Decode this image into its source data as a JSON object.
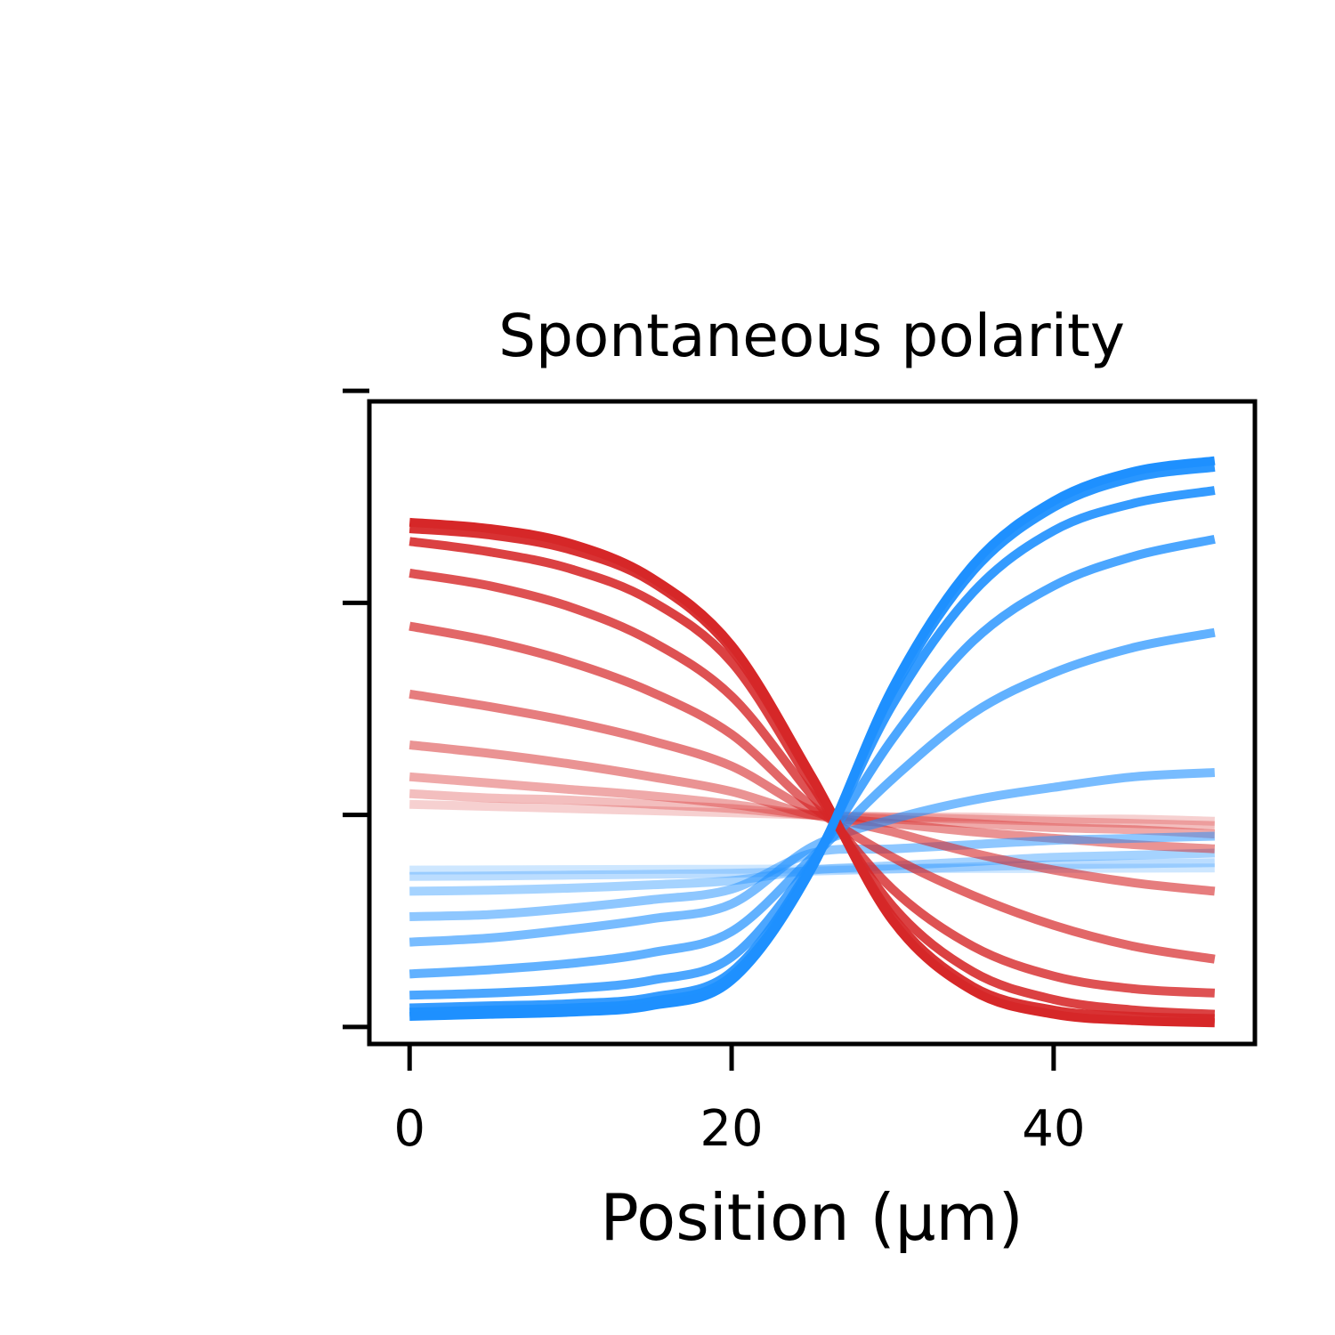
{
  "chart_data": {
    "type": "line",
    "title": "Spontaneous polarity",
    "xlabel": "Position (µm)",
    "ylabel": "",
    "xlim": [
      -2.5,
      52.5
    ],
    "ylim": [
      -0.08,
      2.95
    ],
    "x_ticks": [
      0,
      20,
      40
    ],
    "x_tick_labels": [
      "0",
      "20",
      "40"
    ],
    "y_ticks": [
      0,
      1,
      2,
      3
    ],
    "y_tick_labels": [
      "",
      "",
      "",
      ""
    ],
    "grid": false,
    "legend": "none",
    "colors": {
      "red": "#d62728",
      "blue": "#1e90ff"
    },
    "x": [
      0,
      5,
      10,
      15,
      20,
      25,
      30,
      35,
      40,
      45,
      50
    ],
    "series": [
      {
        "color": "red",
        "opacity": 1.0,
        "values": [
          2.38,
          2.35,
          2.28,
          2.12,
          1.8,
          1.18,
          0.5,
          0.17,
          0.06,
          0.03,
          0.02
        ]
      },
      {
        "color": "red",
        "opacity": 0.95,
        "values": [
          2.35,
          2.32,
          2.25,
          2.1,
          1.78,
          1.17,
          0.52,
          0.19,
          0.08,
          0.05,
          0.04
        ]
      },
      {
        "color": "red",
        "opacity": 0.88,
        "values": [
          2.29,
          2.24,
          2.16,
          2.01,
          1.72,
          1.14,
          0.57,
          0.26,
          0.13,
          0.08,
          0.06
        ]
      },
      {
        "color": "red",
        "opacity": 0.8,
        "values": [
          2.14,
          2.08,
          1.98,
          1.82,
          1.56,
          1.09,
          0.65,
          0.38,
          0.24,
          0.18,
          0.16
        ]
      },
      {
        "color": "red",
        "opacity": 0.7,
        "values": [
          1.89,
          1.82,
          1.72,
          1.58,
          1.38,
          1.04,
          0.8,
          0.62,
          0.48,
          0.38,
          0.32
        ]
      },
      {
        "color": "red",
        "opacity": 0.6,
        "values": [
          1.57,
          1.51,
          1.44,
          1.35,
          1.23,
          1.02,
          0.92,
          0.82,
          0.74,
          0.68,
          0.64
        ]
      },
      {
        "color": "red",
        "opacity": 0.5,
        "values": [
          1.33,
          1.29,
          1.24,
          1.18,
          1.11,
          1.0,
          0.96,
          0.92,
          0.89,
          0.86,
          0.84
        ]
      },
      {
        "color": "red",
        "opacity": 0.4,
        "values": [
          1.18,
          1.15,
          1.12,
          1.09,
          1.05,
          1.0,
          0.98,
          0.96,
          0.94,
          0.93,
          0.91
        ]
      },
      {
        "color": "red",
        "opacity": 0.3,
        "values": [
          1.1,
          1.08,
          1.07,
          1.05,
          1.03,
          1.0,
          0.99,
          0.98,
          0.97,
          0.96,
          0.95
        ]
      },
      {
        "color": "red",
        "opacity": 0.22,
        "values": [
          1.05,
          1.04,
          1.03,
          1.02,
          1.01,
          1.0,
          0.99,
          0.99,
          0.98,
          0.98,
          0.97
        ]
      },
      {
        "color": "blue",
        "opacity": 1.0,
        "values": [
          0.05,
          0.06,
          0.07,
          0.1,
          0.22,
          0.75,
          1.6,
          2.18,
          2.48,
          2.62,
          2.67
        ]
      },
      {
        "color": "blue",
        "opacity": 0.95,
        "values": [
          0.07,
          0.08,
          0.09,
          0.12,
          0.24,
          0.76,
          1.58,
          2.15,
          2.45,
          2.59,
          2.64
        ]
      },
      {
        "color": "blue",
        "opacity": 0.9,
        "values": [
          0.09,
          0.1,
          0.11,
          0.14,
          0.26,
          0.77,
          1.52,
          2.05,
          2.34,
          2.47,
          2.53
        ]
      },
      {
        "color": "blue",
        "opacity": 0.8,
        "values": [
          0.15,
          0.16,
          0.18,
          0.22,
          0.33,
          0.78,
          1.36,
          1.82,
          2.08,
          2.22,
          2.3
        ]
      },
      {
        "color": "blue",
        "opacity": 0.7,
        "values": [
          0.25,
          0.27,
          0.3,
          0.35,
          0.45,
          0.8,
          1.17,
          1.48,
          1.67,
          1.79,
          1.86
        ]
      },
      {
        "color": "blue",
        "opacity": 0.6,
        "values": [
          0.4,
          0.42,
          0.46,
          0.51,
          0.58,
          0.85,
          0.98,
          1.07,
          1.13,
          1.18,
          1.2
        ]
      },
      {
        "color": "blue",
        "opacity": 0.5,
        "values": [
          0.52,
          0.53,
          0.56,
          0.6,
          0.65,
          0.82,
          0.84,
          0.86,
          0.88,
          0.89,
          0.9
        ]
      },
      {
        "color": "blue",
        "opacity": 0.4,
        "values": [
          0.64,
          0.645,
          0.655,
          0.67,
          0.69,
          0.74,
          0.76,
          0.78,
          0.8,
          0.81,
          0.82
        ]
      },
      {
        "color": "blue",
        "opacity": 0.3,
        "values": [
          0.71,
          0.712,
          0.716,
          0.72,
          0.725,
          0.735,
          0.745,
          0.755,
          0.765,
          0.77,
          0.775
        ]
      },
      {
        "color": "blue",
        "opacity": 0.22,
        "values": [
          0.74,
          0.741,
          0.742,
          0.743,
          0.744,
          0.745,
          0.746,
          0.747,
          0.748,
          0.749,
          0.75
        ]
      }
    ]
  }
}
